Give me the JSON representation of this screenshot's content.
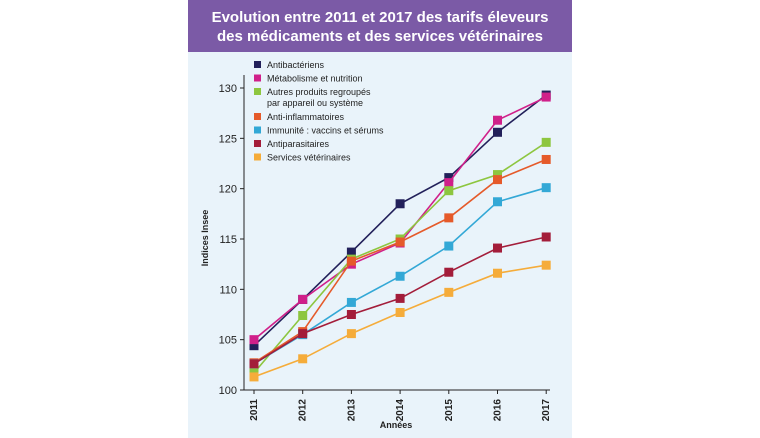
{
  "header": {
    "title_line1": "Evolution entre 2011 et 2017 des tarifs éleveurs",
    "title_line2": "des médicaments et des services vétérinaires"
  },
  "colors": {
    "header_bg": "#7b5aa6",
    "panel_bg": "#e9f3fa"
  },
  "chart_data": {
    "type": "line",
    "title": "Evolution entre 2011 et 2017 des tarifs éleveurs des médicaments et des services vétérinaires",
    "xlabel": "Années",
    "ylabel": "Indices Insee",
    "categories": [
      "2011",
      "2012",
      "2013",
      "2014",
      "2015",
      "2016",
      "2017"
    ],
    "ylim": [
      100,
      130
    ],
    "yticks": [
      100,
      105,
      110,
      115,
      120,
      125,
      130
    ],
    "grid": false,
    "legend_position": "top-left",
    "series": [
      {
        "name": "Antibactériens",
        "color": "#22205a",
        "values": [
          104.4,
          109.0,
          113.7,
          118.5,
          121.1,
          125.6,
          129.3
        ]
      },
      {
        "name": "Métabolisme et nutrition",
        "color": "#d0208a",
        "values": [
          105.0,
          109.0,
          112.5,
          114.6,
          120.6,
          126.8,
          129.1
        ]
      },
      {
        "name": "Autres produits regroupés par appareil ou système",
        "color": "#8dc63f",
        "values": [
          101.7,
          107.4,
          113.0,
          115.0,
          119.8,
          121.4,
          124.6
        ]
      },
      {
        "name": "Anti-inflammatoires",
        "color": "#e55a2a",
        "values": [
          102.7,
          105.8,
          112.8,
          114.7,
          117.1,
          120.9,
          122.9
        ]
      },
      {
        "name": "Immunité : vaccins et sérums",
        "color": "#33a8d6",
        "values": [
          102.6,
          105.5,
          108.7,
          111.3,
          114.3,
          118.7,
          120.1
        ]
      },
      {
        "name": "Antiparasitaires",
        "color": "#a31d3a",
        "values": [
          102.6,
          105.6,
          107.5,
          109.1,
          111.7,
          114.1,
          115.2
        ]
      },
      {
        "name": "Services vétérinaires",
        "color": "#f5ac3a",
        "values": [
          101.3,
          103.1,
          105.6,
          107.7,
          109.7,
          111.6,
          112.4
        ]
      }
    ]
  }
}
